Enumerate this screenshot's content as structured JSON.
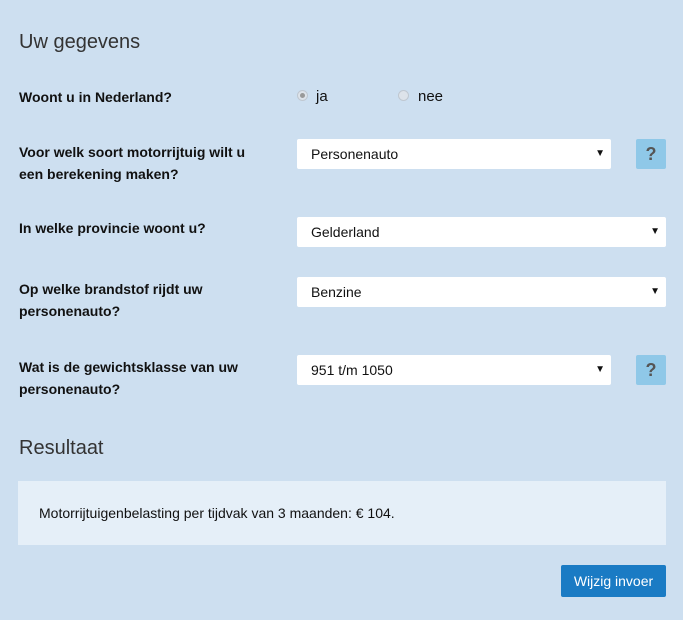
{
  "section_title": "Uw gegevens",
  "questions": {
    "woont": "Woont u in Nederland?",
    "soort": "Voor welk soort motorrijtuig wilt u een berekening maken?",
    "provincie": "In welke provincie woont u?",
    "brandstof": "Op welke brandstof rijdt uw personenauto?",
    "gewicht": "Wat is de gewichtsklasse van uw personenauto?"
  },
  "radio": {
    "ja": "ja",
    "nee": "nee",
    "selected": "ja"
  },
  "selects": {
    "soort": "Personenauto",
    "provincie": "Gelderland",
    "brandstof": "Benzine",
    "gewicht": "951 t/m 1050"
  },
  "arrow": "▼",
  "help": "?",
  "result_title": "Resultaat",
  "result_text": "Motorrijtuigenbelasting per tijdvak van 3 maanden: € 104.",
  "button": "Wijzig invoer"
}
